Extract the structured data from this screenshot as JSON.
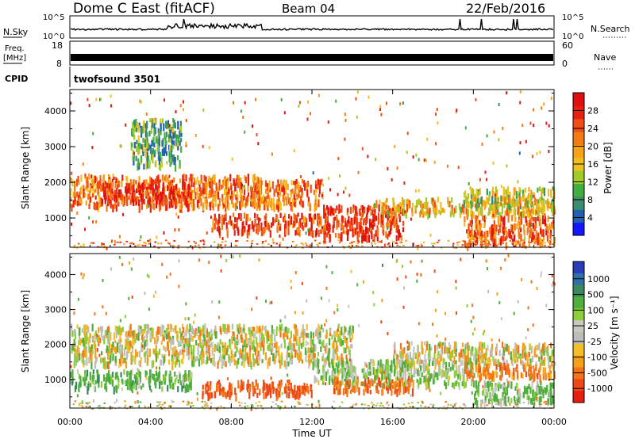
{
  "header": {
    "station": "Dome C East (fitACF)",
    "beam": "Beam 04",
    "date": "22/Feb/2016"
  },
  "summary_panels": {
    "nsky_label": "N.Sky",
    "nsearch_label": "N.Search",
    "freq_label_line1": "Freq.",
    "freq_label_line2": "[MHz]",
    "nave_label": "Nave",
    "cpid_label": "CPID",
    "cpid_value": "twofsound 3501",
    "noise_ticks": [
      "10^5",
      "10^0"
    ],
    "freq_ticks": [
      "18",
      "8"
    ],
    "nave_ticks": [
      "60",
      "0"
    ]
  },
  "axes": {
    "x_label": "Time UT",
    "y_label": "Slant Range [km]",
    "x_ticks": [
      "00:00",
      "04:00",
      "08:00",
      "12:00",
      "16:00",
      "20:00",
      "00:00"
    ],
    "y_ticks": [
      "1000",
      "2000",
      "3000",
      "4000"
    ]
  },
  "power_scale": {
    "label": "Power [dB]",
    "ticks": [
      "4",
      "8",
      "12",
      "16",
      "20",
      "24",
      "28"
    ],
    "colors": [
      "#1515ff",
      "#2060b0",
      "#3c8c6e",
      "#3fb03f",
      "#9fcc2b",
      "#f0c020",
      "#f7a21a",
      "#f47a16",
      "#ef4e14",
      "#e82010",
      "#df1010"
    ]
  },
  "velocity_scale": {
    "label": "Velocity [m s⁻¹]",
    "ticks": [
      "1000",
      "500",
      "100",
      "25",
      "-25",
      "-100",
      "-500",
      "-1000"
    ],
    "colors": [
      "#2a3cb8",
      "#3070a8",
      "#3a8a5e",
      "#4fae3c",
      "#8bcf3a",
      "#c8c8c0",
      "#bdbdb8",
      "#f3c02c",
      "#f5a01c",
      "#f47418",
      "#ee4814",
      "#e61e10"
    ]
  },
  "chart_data": {
    "type": "heatmap",
    "title": "Dome C East (fitACF) Beam 04 22/Feb/2016",
    "xlabel": "Time UT",
    "ylabel": "Slant Range [km]",
    "xlim_hours": [
      0,
      24
    ],
    "ylim_km": [
      180,
      4600
    ],
    "panels": [
      {
        "name": "Power [dB]",
        "cbar_range": [
          0,
          32
        ],
        "bands": [
          {
            "t0": 0.0,
            "t1": 9.5,
            "r0": 1350,
            "r1": 2250,
            "value": 22
          },
          {
            "t0": 1.5,
            "t1": 6.0,
            "r0": 1500,
            "r1": 2000,
            "value": 28
          },
          {
            "t0": 7.0,
            "t1": 12.5,
            "r0": 650,
            "r1": 1150,
            "value": 26
          },
          {
            "t0": 9.0,
            "t1": 12.5,
            "r0": 1350,
            "r1": 2100,
            "value": 22
          },
          {
            "t0": 12.5,
            "t1": 16.5,
            "r0": 500,
            "r1": 1400,
            "value": 27
          },
          {
            "t0": 15.0,
            "t1": 24.0,
            "r0": 1150,
            "r1": 1600,
            "value": 18
          },
          {
            "t0": 19.5,
            "t1": 24.0,
            "r0": 300,
            "r1": 1100,
            "value": 24
          },
          {
            "t0": 19.5,
            "t1": 24.0,
            "r0": 1400,
            "r1": 1900,
            "value": 14
          },
          {
            "t0": 3.0,
            "t1": 5.5,
            "r0": 2500,
            "r1": 3800,
            "value": 10
          }
        ]
      },
      {
        "name": "Velocity [m s-1]",
        "cbar_range": [
          -1000,
          1000
        ],
        "bands": [
          {
            "t0": 0.0,
            "t1": 14.0,
            "r0": 1500,
            "r1": 2600,
            "value": 0
          },
          {
            "t0": 16.0,
            "t1": 24.0,
            "r0": 1500,
            "r1": 2100,
            "value": 0
          },
          {
            "t0": 0.0,
            "t1": 6.0,
            "r0": 800,
            "r1": 1300,
            "value": 150
          },
          {
            "t0": 6.5,
            "t1": 12.0,
            "r0": 600,
            "r1": 1000,
            "value": -300
          },
          {
            "t0": 12.0,
            "t1": 20.0,
            "r0": 900,
            "r1": 1600,
            "value": 80
          },
          {
            "t0": 13.0,
            "t1": 17.0,
            "r0": 700,
            "r1": 1100,
            "value": -200
          },
          {
            "t0": 20.0,
            "t1": 24.0,
            "r0": 400,
            "r1": 1000,
            "value": 120
          },
          {
            "t0": 19.5,
            "t1": 24.0,
            "r0": 1100,
            "r1": 1500,
            "value": -150
          }
        ]
      }
    ]
  }
}
